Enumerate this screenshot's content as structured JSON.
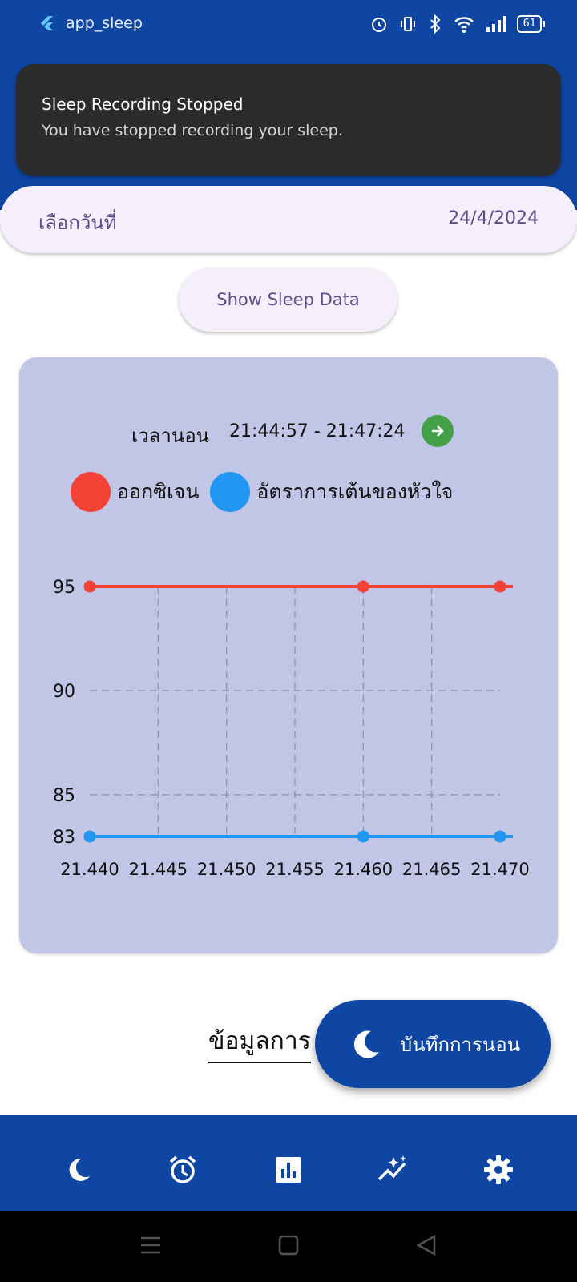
{
  "status_bar": {
    "app_name": "app_sleep",
    "battery": "61"
  },
  "notification": {
    "title": "Sleep Recording Stopped",
    "message": "You have stopped recording your sleep."
  },
  "date_picker": {
    "label": "เลือกวันที่",
    "value": "24/4/2024"
  },
  "show_button": {
    "label": "Show Sleep Data"
  },
  "session": {
    "label": "เวลานอน",
    "time_range": "21:44:57 - 21:47:24"
  },
  "colors": {
    "oxygen": "#f44336",
    "heart_rate": "#2196f3",
    "brand": "#0f46a4",
    "card": "#c1c5e6"
  },
  "chart_data": {
    "type": "line",
    "x": [
      21.44,
      21.46,
      21.47
    ],
    "x_ticks": [
      "21.440",
      "21.445",
      "21.450",
      "21.455",
      "21.460",
      "21.465",
      "21.470"
    ],
    "y_ticks": [
      "95",
      "90",
      "85",
      "83"
    ],
    "ylim": [
      83,
      95
    ],
    "xlim": [
      21.44,
      21.47
    ],
    "grid": true,
    "legend_position": "top",
    "series": [
      {
        "name": "ออกซิเจน",
        "values": [
          95,
          95,
          95
        ]
      },
      {
        "name": "อัตราการเต้นของหัวใจ",
        "values": [
          83,
          83,
          83
        ]
      }
    ]
  },
  "section_text": "ข้อมูลการ",
  "fab": {
    "label": "บันทึกการนอน"
  },
  "bottom_nav": {
    "items": [
      {
        "icon": "moon-icon"
      },
      {
        "icon": "alarm-icon"
      },
      {
        "icon": "bar-chart-icon"
      },
      {
        "icon": "insights-icon"
      },
      {
        "icon": "settings-icon"
      }
    ]
  }
}
